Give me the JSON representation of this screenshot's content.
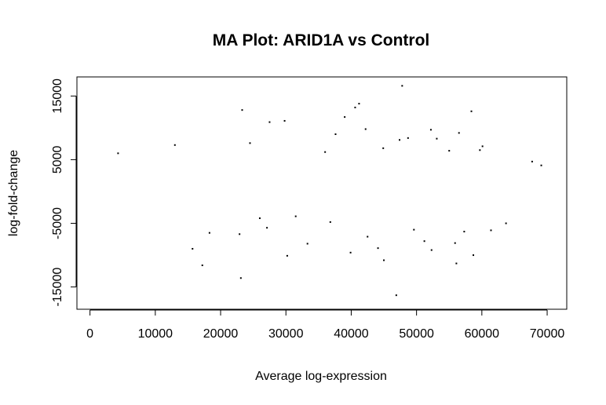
{
  "chart_data": {
    "type": "scatter",
    "title": "MA Plot: ARID1A vs Control",
    "xlabel": "Average log-expression",
    "ylabel": "log-fold-change",
    "xlim": [
      -2000,
      73000
    ],
    "ylim": [
      -18500,
      18000
    ],
    "x_ticks": [
      0,
      10000,
      20000,
      30000,
      40000,
      50000,
      60000,
      70000
    ],
    "x_tick_labels": [
      "0",
      "10000",
      "20000",
      "30000",
      "40000",
      "50000",
      "60000",
      "70000"
    ],
    "y_ticks": [
      -15000,
      -5000,
      5000,
      15000
    ],
    "y_tick_labels": [
      "-15000",
      "-5000",
      "5000",
      "15000"
    ],
    "grid": false,
    "legend": "none",
    "marker_color": "#000000",
    "series": [
      {
        "points": [
          [
            47800,
            16600
          ],
          [
            41200,
            13800
          ],
          [
            40600,
            13200
          ],
          [
            23300,
            12800
          ],
          [
            58400,
            12600
          ],
          [
            39000,
            11700
          ],
          [
            27500,
            10900
          ],
          [
            29800,
            11100
          ],
          [
            42200,
            9800
          ],
          [
            52200,
            9700
          ],
          [
            56500,
            9200
          ],
          [
            37600,
            9000
          ],
          [
            48700,
            8400
          ],
          [
            47400,
            8100
          ],
          [
            24500,
            7600
          ],
          [
            13000,
            7300
          ],
          [
            53100,
            8300
          ],
          [
            60100,
            7100
          ],
          [
            55000,
            6400
          ],
          [
            59700,
            6500
          ],
          [
            4300,
            6000
          ],
          [
            44900,
            6800
          ],
          [
            36000,
            6200
          ],
          [
            67700,
            4700
          ],
          [
            69100,
            4100
          ],
          [
            15700,
            -9000
          ],
          [
            17200,
            -11600
          ],
          [
            23100,
            -13600
          ],
          [
            46900,
            -16300
          ],
          [
            56100,
            -11300
          ],
          [
            45000,
            -10800
          ],
          [
            58700,
            -10000
          ],
          [
            30200,
            -10100
          ],
          [
            39900,
            -9600
          ],
          [
            52300,
            -9200
          ],
          [
            33300,
            -8200
          ],
          [
            55900,
            -8100
          ],
          [
            61400,
            -6100
          ],
          [
            18300,
            -6500
          ],
          [
            22900,
            -6700
          ],
          [
            42500,
            -7100
          ],
          [
            49600,
            -6000
          ],
          [
            27100,
            -5700
          ],
          [
            63700,
            -5000
          ],
          [
            36800,
            -4800
          ],
          [
            51200,
            -7800
          ],
          [
            44100,
            -8900
          ],
          [
            57300,
            -6300
          ],
          [
            26000,
            -4200
          ],
          [
            31500,
            -3900
          ]
        ]
      }
    ]
  }
}
